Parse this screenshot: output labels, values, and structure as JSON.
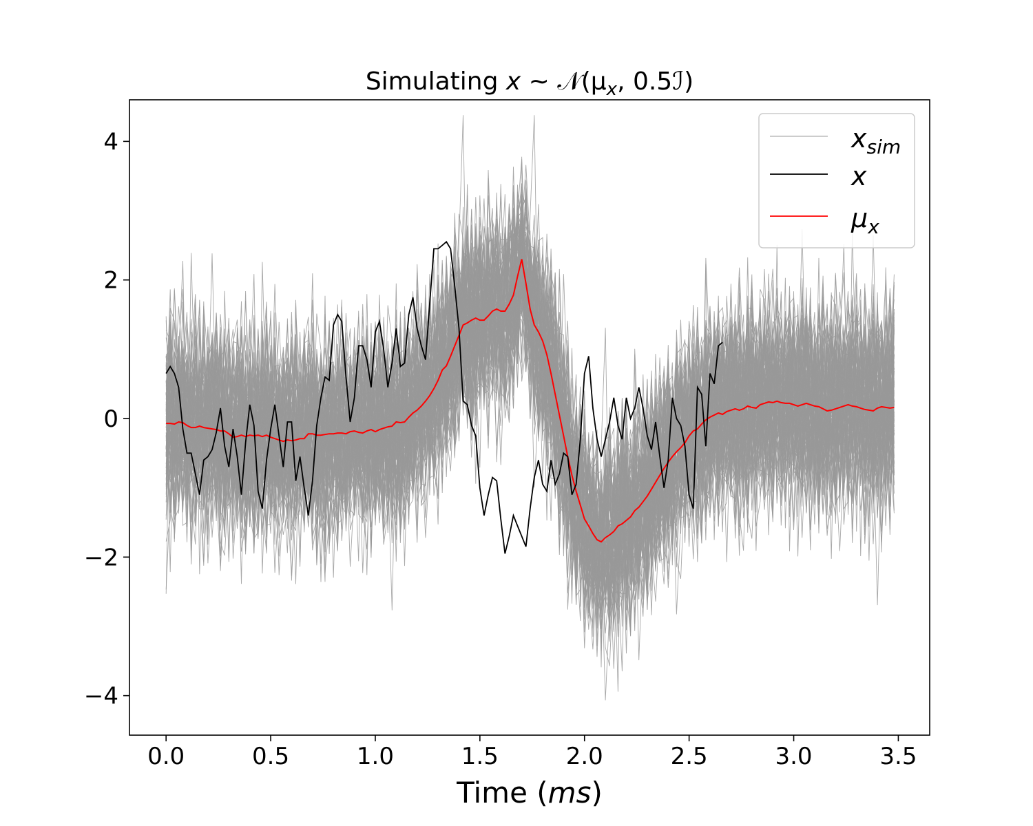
{
  "chart_data": {
    "type": "line",
    "title": "Simulating x ∼ 𝒩(μ_x, 0.5ℐ)",
    "title_parts": {
      "prefix": "Simulating ",
      "var": "x",
      "rest": " ∼ 𝒩(μ",
      "sub": "x",
      "suffix": ", 0.5ℐ)"
    },
    "xlabel": "Time (ms)",
    "xlabel_parts": {
      "prefix": "Time (",
      "unit": "ms",
      "suffix": ")"
    },
    "ylabel": "",
    "xlim": [
      -0.175,
      3.65
    ],
    "ylim": [
      -4.57,
      4.6
    ],
    "xticks": [
      0.0,
      0.5,
      1.0,
      1.5,
      2.0,
      2.5,
      3.0,
      3.5
    ],
    "xtick_labels": [
      "0.0",
      "0.5",
      "1.0",
      "1.5",
      "2.0",
      "2.5",
      "3.0",
      "3.5"
    ],
    "yticks": [
      -4,
      -2,
      0,
      2,
      4
    ],
    "ytick_labels": [
      "−4",
      "−2",
      "0",
      "2",
      "4"
    ],
    "grid": false,
    "legend_position": "top-right",
    "colors": {
      "x_sim": "#999999",
      "x": "#000000",
      "mu_x": "#ff0000"
    },
    "legend": [
      {
        "key": "x_sim",
        "label": "x",
        "sub": "sim",
        "color": "#999999"
      },
      {
        "key": "x",
        "label": "x",
        "sub": "",
        "color": "#000000"
      },
      {
        "key": "mu_x",
        "label": "μ",
        "sub": "x",
        "color": "#ff0000"
      }
    ],
    "sim_count": 100,
    "sim_std": 0.707,
    "x_step": 0.02,
    "mu_x": [
      [
        0.0,
        -0.07
      ],
      [
        0.02,
        -0.07
      ],
      [
        0.04,
        -0.08
      ],
      [
        0.06,
        -0.05
      ],
      [
        0.08,
        -0.06
      ],
      [
        0.1,
        -0.1
      ],
      [
        0.12,
        -0.13
      ],
      [
        0.14,
        -0.13
      ],
      [
        0.16,
        -0.11
      ],
      [
        0.18,
        -0.13
      ],
      [
        0.2,
        -0.14
      ],
      [
        0.22,
        -0.15
      ],
      [
        0.24,
        -0.16
      ],
      [
        0.26,
        -0.18
      ],
      [
        0.28,
        -0.18
      ],
      [
        0.3,
        -0.22
      ],
      [
        0.32,
        -0.27
      ],
      [
        0.34,
        -0.26
      ],
      [
        0.36,
        -0.24
      ],
      [
        0.38,
        -0.26
      ],
      [
        0.4,
        -0.24
      ],
      [
        0.42,
        -0.25
      ],
      [
        0.44,
        -0.24
      ],
      [
        0.46,
        -0.26
      ],
      [
        0.48,
        -0.24
      ],
      [
        0.5,
        -0.27
      ],
      [
        0.52,
        -0.29
      ],
      [
        0.54,
        -0.31
      ],
      [
        0.56,
        -0.33
      ],
      [
        0.58,
        -0.31
      ],
      [
        0.6,
        -0.32
      ],
      [
        0.62,
        -0.31
      ],
      [
        0.64,
        -0.29
      ],
      [
        0.66,
        -0.29
      ],
      [
        0.68,
        -0.22
      ],
      [
        0.7,
        -0.22
      ],
      [
        0.72,
        -0.24
      ],
      [
        0.74,
        -0.24
      ],
      [
        0.76,
        -0.23
      ],
      [
        0.78,
        -0.22
      ],
      [
        0.8,
        -0.22
      ],
      [
        0.82,
        -0.21
      ],
      [
        0.84,
        -0.21
      ],
      [
        0.86,
        -0.22
      ],
      [
        0.88,
        -0.19
      ],
      [
        0.9,
        -0.18
      ],
      [
        0.92,
        -0.2
      ],
      [
        0.94,
        -0.21
      ],
      [
        0.96,
        -0.18
      ],
      [
        0.98,
        -0.16
      ],
      [
        1.0,
        -0.19
      ],
      [
        1.02,
        -0.16
      ],
      [
        1.04,
        -0.14
      ],
      [
        1.06,
        -0.12
      ],
      [
        1.08,
        -0.11
      ],
      [
        1.1,
        -0.05
      ],
      [
        1.12,
        -0.06
      ],
      [
        1.14,
        -0.05
      ],
      [
        1.16,
        0.02
      ],
      [
        1.18,
        0.08
      ],
      [
        1.2,
        0.12
      ],
      [
        1.22,
        0.18
      ],
      [
        1.24,
        0.25
      ],
      [
        1.26,
        0.33
      ],
      [
        1.28,
        0.43
      ],
      [
        1.3,
        0.55
      ],
      [
        1.32,
        0.7
      ],
      [
        1.34,
        0.76
      ],
      [
        1.36,
        0.9
      ],
      [
        1.38,
        1.05
      ],
      [
        1.4,
        1.2
      ],
      [
        1.42,
        1.35
      ],
      [
        1.44,
        1.38
      ],
      [
        1.46,
        1.42
      ],
      [
        1.48,
        1.45
      ],
      [
        1.5,
        1.42
      ],
      [
        1.52,
        1.42
      ],
      [
        1.54,
        1.48
      ],
      [
        1.56,
        1.55
      ],
      [
        1.58,
        1.58
      ],
      [
        1.6,
        1.55
      ],
      [
        1.62,
        1.55
      ],
      [
        1.64,
        1.65
      ],
      [
        1.66,
        1.78
      ],
      [
        1.68,
        2.05
      ],
      [
        1.7,
        2.3
      ],
      [
        1.72,
        1.95
      ],
      [
        1.74,
        1.58
      ],
      [
        1.76,
        1.35
      ],
      [
        1.78,
        1.25
      ],
      [
        1.8,
        1.12
      ],
      [
        1.82,
        0.92
      ],
      [
        1.84,
        0.65
      ],
      [
        1.86,
        0.35
      ],
      [
        1.88,
        0.05
      ],
      [
        1.9,
        -0.25
      ],
      [
        1.92,
        -0.55
      ],
      [
        1.94,
        -0.82
      ],
      [
        1.96,
        -1.05
      ],
      [
        1.98,
        -1.25
      ],
      [
        2.0,
        -1.45
      ],
      [
        2.02,
        -1.55
      ],
      [
        2.04,
        -1.66
      ],
      [
        2.06,
        -1.75
      ],
      [
        2.08,
        -1.78
      ],
      [
        2.1,
        -1.72
      ],
      [
        2.12,
        -1.68
      ],
      [
        2.14,
        -1.63
      ],
      [
        2.16,
        -1.55
      ],
      [
        2.18,
        -1.52
      ],
      [
        2.2,
        -1.47
      ],
      [
        2.22,
        -1.42
      ],
      [
        2.24,
        -1.33
      ],
      [
        2.26,
        -1.28
      ],
      [
        2.28,
        -1.2
      ],
      [
        2.3,
        -1.12
      ],
      [
        2.32,
        -1.02
      ],
      [
        2.34,
        -0.92
      ],
      [
        2.36,
        -0.82
      ],
      [
        2.38,
        -0.72
      ],
      [
        2.4,
        -0.63
      ],
      [
        2.42,
        -0.55
      ],
      [
        2.44,
        -0.48
      ],
      [
        2.46,
        -0.42
      ],
      [
        2.48,
        -0.35
      ],
      [
        2.5,
        -0.25
      ],
      [
        2.52,
        -0.18
      ],
      [
        2.54,
        -0.15
      ],
      [
        2.56,
        -0.08
      ],
      [
        2.58,
        -0.02
      ],
      [
        2.6,
        0.02
      ],
      [
        2.62,
        0.05
      ],
      [
        2.64,
        0.08
      ],
      [
        2.66,
        0.06
      ],
      [
        2.68,
        0.1
      ],
      [
        2.7,
        0.12
      ],
      [
        2.72,
        0.14
      ],
      [
        2.74,
        0.12
      ],
      [
        2.76,
        0.14
      ],
      [
        2.78,
        0.18
      ],
      [
        2.8,
        0.16
      ],
      [
        2.82,
        0.15
      ],
      [
        2.84,
        0.2
      ],
      [
        2.86,
        0.22
      ],
      [
        2.88,
        0.24
      ],
      [
        2.9,
        0.23
      ],
      [
        2.92,
        0.25
      ],
      [
        2.94,
        0.23
      ],
      [
        2.96,
        0.22
      ],
      [
        2.98,
        0.22
      ],
      [
        3.0,
        0.2
      ],
      [
        3.02,
        0.18
      ],
      [
        3.04,
        0.2
      ],
      [
        3.06,
        0.22
      ],
      [
        3.08,
        0.2
      ],
      [
        3.1,
        0.18
      ],
      [
        3.12,
        0.17
      ],
      [
        3.14,
        0.14
      ],
      [
        3.16,
        0.11
      ],
      [
        3.18,
        0.12
      ],
      [
        3.2,
        0.14
      ],
      [
        3.22,
        0.16
      ],
      [
        3.24,
        0.18
      ],
      [
        3.26,
        0.2
      ],
      [
        3.28,
        0.18
      ],
      [
        3.3,
        0.17
      ],
      [
        3.32,
        0.15
      ],
      [
        3.34,
        0.13
      ],
      [
        3.36,
        0.12
      ],
      [
        3.38,
        0.11
      ],
      [
        3.4,
        0.15
      ],
      [
        3.42,
        0.17
      ],
      [
        3.44,
        0.16
      ],
      [
        3.46,
        0.15
      ],
      [
        3.48,
        0.16
      ]
    ],
    "x": [
      [
        0.0,
        0.65
      ],
      [
        0.02,
        0.75
      ],
      [
        0.04,
        0.65
      ],
      [
        0.06,
        0.45
      ],
      [
        0.08,
        -0.15
      ],
      [
        0.1,
        -0.5
      ],
      [
        0.12,
        -0.5
      ],
      [
        0.14,
        -0.8
      ],
      [
        0.16,
        -1.1
      ],
      [
        0.18,
        -0.6
      ],
      [
        0.2,
        -0.55
      ],
      [
        0.22,
        -0.45
      ],
      [
        0.24,
        -0.2
      ],
      [
        0.26,
        0.15
      ],
      [
        0.28,
        -0.4
      ],
      [
        0.3,
        -0.7
      ],
      [
        0.32,
        -0.15
      ],
      [
        0.34,
        -0.55
      ],
      [
        0.36,
        -1.1
      ],
      [
        0.38,
        -0.35
      ],
      [
        0.4,
        0.2
      ],
      [
        0.42,
        -0.1
      ],
      [
        0.44,
        -1.05
      ],
      [
        0.46,
        -1.3
      ],
      [
        0.48,
        -0.6
      ],
      [
        0.5,
        -0.15
      ],
      [
        0.52,
        0.2
      ],
      [
        0.54,
        -0.25
      ],
      [
        0.56,
        -0.7
      ],
      [
        0.58,
        -0.05
      ],
      [
        0.6,
        -0.05
      ],
      [
        0.62,
        -0.9
      ],
      [
        0.64,
        -0.55
      ],
      [
        0.66,
        -1.0
      ],
      [
        0.68,
        -1.4
      ],
      [
        0.7,
        -0.9
      ],
      [
        0.72,
        -0.1
      ],
      [
        0.74,
        0.3
      ],
      [
        0.76,
        0.6
      ],
      [
        0.78,
        0.55
      ],
      [
        0.8,
        1.35
      ],
      [
        0.82,
        1.5
      ],
      [
        0.84,
        1.4
      ],
      [
        0.86,
        0.6
      ],
      [
        0.88,
        -0.05
      ],
      [
        0.9,
        0.3
      ],
      [
        0.92,
        1.05
      ],
      [
        0.94,
        1.05
      ],
      [
        0.96,
        0.85
      ],
      [
        0.98,
        0.45
      ],
      [
        1.0,
        1.25
      ],
      [
        1.02,
        1.4
      ],
      [
        1.04,
        1.0
      ],
      [
        1.06,
        0.45
      ],
      [
        1.08,
        0.8
      ],
      [
        1.1,
        1.3
      ],
      [
        1.12,
        0.75
      ],
      [
        1.14,
        0.8
      ],
      [
        1.16,
        1.5
      ],
      [
        1.18,
        1.75
      ],
      [
        1.2,
        1.3
      ],
      [
        1.22,
        1.05
      ],
      [
        1.24,
        0.85
      ],
      [
        1.26,
        1.65
      ],
      [
        1.28,
        2.45
      ],
      [
        1.3,
        2.45
      ],
      [
        1.32,
        2.5
      ],
      [
        1.34,
        2.55
      ],
      [
        1.36,
        2.45
      ],
      [
        1.38,
        1.9
      ],
      [
        1.4,
        1.3
      ],
      [
        1.42,
        0.25
      ],
      [
        1.44,
        0.2
      ],
      [
        1.46,
        -0.1
      ],
      [
        1.48,
        -0.25
      ],
      [
        1.5,
        -1.0
      ],
      [
        1.52,
        -1.4
      ],
      [
        1.54,
        -1.1
      ],
      [
        1.56,
        -0.85
      ],
      [
        1.58,
        -0.9
      ],
      [
        1.6,
        -1.45
      ],
      [
        1.62,
        -1.95
      ],
      [
        1.64,
        -1.7
      ],
      [
        1.66,
        -1.4
      ],
      [
        1.68,
        -1.55
      ],
      [
        1.7,
        -1.7
      ],
      [
        1.72,
        -1.85
      ],
      [
        1.74,
        -1.3
      ],
      [
        1.76,
        -0.85
      ],
      [
        1.78,
        -0.6
      ],
      [
        1.8,
        -0.95
      ],
      [
        1.82,
        -1.05
      ],
      [
        1.84,
        -0.6
      ],
      [
        1.86,
        -0.95
      ],
      [
        1.88,
        -0.8
      ],
      [
        1.9,
        -0.5
      ],
      [
        1.92,
        -0.55
      ],
      [
        1.94,
        -1.1
      ],
      [
        1.96,
        -0.95
      ],
      [
        1.98,
        -0.3
      ],
      [
        2.0,
        0.65
      ],
      [
        2.02,
        0.9
      ],
      [
        2.04,
        0.15
      ],
      [
        2.06,
        -0.3
      ],
      [
        2.08,
        -0.55
      ],
      [
        2.1,
        -0.3
      ],
      [
        2.12,
        -0.05
      ],
      [
        2.14,
        0.3
      ],
      [
        2.16,
        -0.1
      ],
      [
        2.18,
        -0.3
      ],
      [
        2.2,
        0.3
      ],
      [
        2.22,
        0.0
      ],
      [
        2.24,
        0.15
      ],
      [
        2.26,
        0.45
      ],
      [
        2.28,
        0.15
      ],
      [
        2.3,
        -0.25
      ],
      [
        2.32,
        -0.45
      ],
      [
        2.34,
        -0.05
      ],
      [
        2.36,
        -0.55
      ],
      [
        2.38,
        -1.0
      ],
      [
        2.4,
        -0.6
      ],
      [
        2.42,
        0.3
      ],
      [
        2.44,
        0.0
      ],
      [
        2.46,
        -0.1
      ],
      [
        2.48,
        -0.4
      ],
      [
        2.5,
        -1.1
      ],
      [
        2.52,
        -1.3
      ],
      [
        2.54,
        0.45
      ],
      [
        2.56,
        0.35
      ],
      [
        2.58,
        -0.4
      ],
      [
        2.6,
        0.65
      ],
      [
        2.62,
        0.5
      ],
      [
        2.64,
        1.05
      ],
      [
        2.66,
        1.1
      ]
    ]
  }
}
